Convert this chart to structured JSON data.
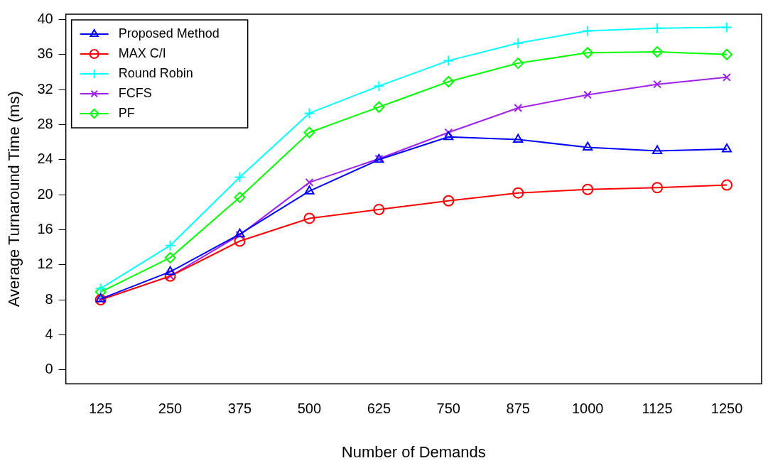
{
  "chart_data": {
    "type": "line",
    "xlabel": "Number of Demands",
    "ylabel": "Average Turnaround Time (ms)",
    "categories": [
      "125",
      "250",
      "375",
      "500",
      "625",
      "750",
      "875",
      "1000",
      "1125",
      "1250"
    ],
    "ylim": [
      -1.6,
      40.6
    ],
    "yticks": [
      0,
      4,
      8,
      12,
      16,
      20,
      24,
      28,
      32,
      36,
      40
    ],
    "grid": false,
    "legend": "top left",
    "line_style": "solid",
    "series": [
      {
        "name": "Proposed Method",
        "color": "#0000ff",
        "marker": "triangle",
        "values": [
          8.1,
          11.2,
          15.5,
          20.4,
          24.0,
          26.6,
          26.3,
          25.4,
          25.0,
          25.2
        ]
      },
      {
        "name": "MAX C/I",
        "color": "#ff0000",
        "marker": "circle",
        "values": [
          8.0,
          10.7,
          14.7,
          17.3,
          18.3,
          19.3,
          20.2,
          20.6,
          20.8,
          21.1
        ]
      },
      {
        "name": "Round Robin",
        "color": "#00ffff",
        "marker": "cross",
        "values": [
          9.3,
          14.2,
          22.0,
          29.3,
          32.4,
          35.3,
          37.3,
          38.7,
          39.0,
          39.1
        ]
      },
      {
        "name": "FCFS",
        "color": "#a020f0",
        "marker": "x",
        "values": [
          8.0,
          10.7,
          15.4,
          21.4,
          24.1,
          27.1,
          29.9,
          31.4,
          32.6,
          33.4
        ]
      },
      {
        "name": "PF",
        "color": "#00ff00",
        "marker": "diamond",
        "values": [
          8.9,
          12.8,
          19.7,
          27.1,
          30.0,
          32.9,
          35.0,
          36.2,
          36.3,
          36.0
        ]
      }
    ]
  }
}
